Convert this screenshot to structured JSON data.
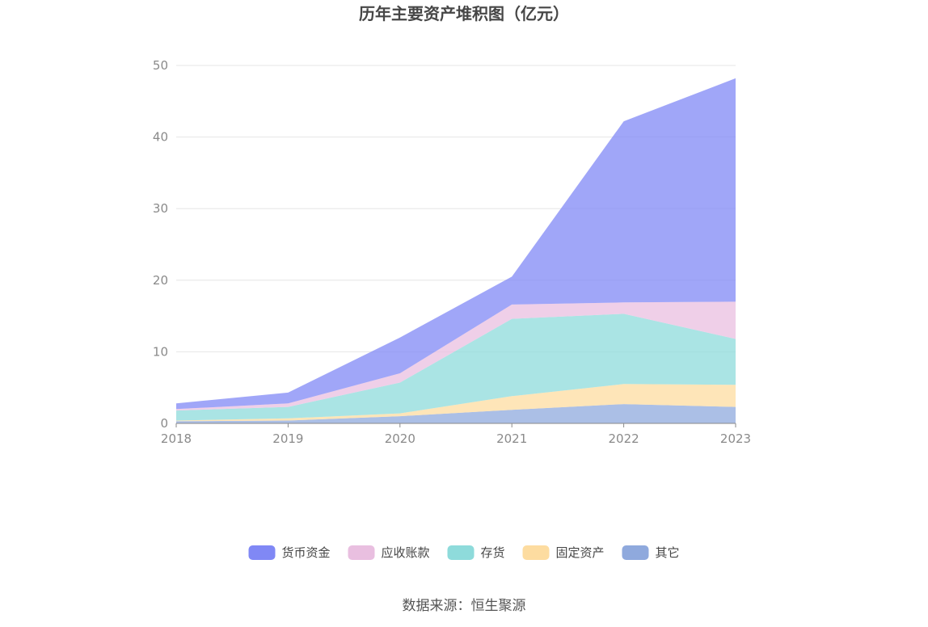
{
  "chart_data": {
    "type": "area",
    "stacked": true,
    "title": "历年主要资产堆积图（亿元）",
    "x": [
      "2018",
      "2019",
      "2020",
      "2021",
      "2022",
      "2023"
    ],
    "ylim": [
      0,
      50
    ],
    "yticks": [
      "0",
      "10",
      "20",
      "30",
      "40",
      "50"
    ],
    "grid": true,
    "legend_position": "bottom",
    "series": [
      {
        "name": "其它",
        "color": "#8fa9dd",
        "values": [
          0.3,
          0.4,
          1.0,
          1.9,
          2.7,
          2.3
        ]
      },
      {
        "name": "固定资产",
        "color": "#fddca0",
        "values": [
          0.1,
          0.3,
          0.4,
          1.9,
          2.8,
          3.1
        ]
      },
      {
        "name": "存货",
        "color": "#8edbdb",
        "values": [
          1.4,
          1.6,
          4.3,
          10.8,
          9.8,
          6.4
        ]
      },
      {
        "name": "应收账款",
        "color": "#e9bfe0",
        "values": [
          0.2,
          0.5,
          1.3,
          2.0,
          1.6,
          5.2
        ]
      },
      {
        "name": "货币资金",
        "color": "#8088f5",
        "values": [
          0.8,
          1.5,
          5.0,
          3.9,
          25.3,
          31.2
        ]
      }
    ],
    "legend_order": [
      "货币资金",
      "应收账款",
      "存货",
      "固定资产",
      "其它"
    ]
  },
  "source": "数据来源：恒生聚源"
}
